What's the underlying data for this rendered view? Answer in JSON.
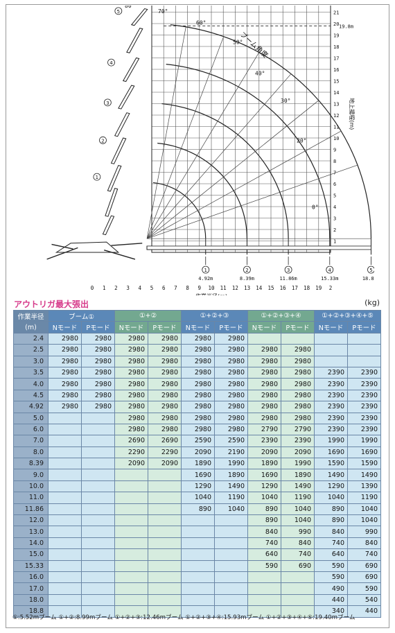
{
  "chart_data": {
    "type": "diagram",
    "y_ticks": [
      "1",
      "2",
      "3",
      "4",
      "5",
      "6",
      "7",
      "8",
      "9",
      "10",
      "11",
      "12",
      "13",
      "14",
      "15",
      "16",
      "17",
      "18",
      "19",
      "20",
      "21",
      "22"
    ],
    "x_ticks": [
      "0",
      "1",
      "2",
      "3",
      "4",
      "5",
      "6",
      "7",
      "8",
      "9",
      "10",
      "11",
      "12",
      "13",
      "14",
      "15",
      "16",
      "17",
      "18",
      "19",
      "2"
    ],
    "ylabel": "地上揚程(m)",
    "xlabel": "作業半径(m)",
    "y_max_label": "19.8m",
    "arc_label": "ブーム角度",
    "boom_angles": [
      "80°",
      "70°",
      "60°",
      "50°",
      "40°",
      "30°",
      "20°",
      "0°"
    ],
    "boom_stages": [
      {
        "index": "①",
        "length": "4.92m"
      },
      {
        "index": "②",
        "length": "8.39m"
      },
      {
        "index": "③",
        "length": "11.86m"
      },
      {
        "index": "④",
        "length": "15.33m"
      },
      {
        "index": "⑤",
        "length": "18.80m"
      }
    ]
  },
  "page_title": "アウトリガ最大張出",
  "unit": "(kg)",
  "table": {
    "corner_top": "作業半径",
    "corner_bottom": "(m)",
    "groups": [
      "ブーム①",
      "①+②",
      "①+②+③",
      "①+②+③+④",
      "①+②+③+④+⑤"
    ],
    "modes": [
      "Nモード",
      "Pモード"
    ],
    "rows": [
      {
        "r": "2.4",
        "v": [
          "2980",
          "2980",
          "2980",
          "2980",
          "2980",
          "2980",
          "",
          "",
          "",
          ""
        ]
      },
      {
        "r": "2.5",
        "v": [
          "2980",
          "2980",
          "2980",
          "2980",
          "2980",
          "2980",
          "2980",
          "2980",
          "",
          ""
        ]
      },
      {
        "r": "3.0",
        "v": [
          "2980",
          "2980",
          "2980",
          "2980",
          "2980",
          "2980",
          "2980",
          "2980",
          "",
          ""
        ]
      },
      {
        "r": "3.5",
        "v": [
          "2980",
          "2980",
          "2980",
          "2980",
          "2980",
          "2980",
          "2980",
          "2980",
          "2390",
          "2390"
        ]
      },
      {
        "r": "4.0",
        "v": [
          "2980",
          "2980",
          "2980",
          "2980",
          "2980",
          "2980",
          "2980",
          "2980",
          "2390",
          "2390"
        ]
      },
      {
        "r": "4.5",
        "v": [
          "2980",
          "2980",
          "2980",
          "2980",
          "2980",
          "2980",
          "2980",
          "2980",
          "2390",
          "2390"
        ]
      },
      {
        "r": "4.92",
        "v": [
          "2980",
          "2980",
          "2980",
          "2980",
          "2980",
          "2980",
          "2980",
          "2980",
          "2390",
          "2390"
        ]
      },
      {
        "r": "5.0",
        "v": [
          "",
          "",
          "2980",
          "2980",
          "2980",
          "2980",
          "2980",
          "2980",
          "2390",
          "2390"
        ]
      },
      {
        "r": "6.0",
        "v": [
          "",
          "",
          "2980",
          "2980",
          "2980",
          "2980",
          "2790",
          "2790",
          "2390",
          "2390"
        ]
      },
      {
        "r": "7.0",
        "v": [
          "",
          "",
          "2690",
          "2690",
          "2590",
          "2590",
          "2390",
          "2390",
          "1990",
          "1990"
        ]
      },
      {
        "r": "8.0",
        "v": [
          "",
          "",
          "2290",
          "2290",
          "2090",
          "2190",
          "2090",
          "2090",
          "1690",
          "1690"
        ]
      },
      {
        "r": "8.39",
        "v": [
          "",
          "",
          "2090",
          "2090",
          "1890",
          "1990",
          "1890",
          "1990",
          "1590",
          "1590"
        ]
      },
      {
        "r": "9.0",
        "v": [
          "",
          "",
          "",
          "",
          "1690",
          "1890",
          "1690",
          "1890",
          "1490",
          "1490"
        ]
      },
      {
        "r": "10.0",
        "v": [
          "",
          "",
          "",
          "",
          "1290",
          "1490",
          "1290",
          "1490",
          "1290",
          "1390"
        ]
      },
      {
        "r": "11.0",
        "v": [
          "",
          "",
          "",
          "",
          "1040",
          "1190",
          "1040",
          "1190",
          "1040",
          "1190"
        ]
      },
      {
        "r": "11.86",
        "v": [
          "",
          "",
          "",
          "",
          "890",
          "1040",
          "890",
          "1040",
          "890",
          "1040"
        ]
      },
      {
        "r": "12.0",
        "v": [
          "",
          "",
          "",
          "",
          "",
          "",
          "890",
          "1040",
          "890",
          "1040"
        ]
      },
      {
        "r": "13.0",
        "v": [
          "",
          "",
          "",
          "",
          "",
          "",
          "840",
          "990",
          "840",
          "990"
        ]
      },
      {
        "r": "14.0",
        "v": [
          "",
          "",
          "",
          "",
          "",
          "",
          "740",
          "840",
          "740",
          "840"
        ]
      },
      {
        "r": "15.0",
        "v": [
          "",
          "",
          "",
          "",
          "",
          "",
          "640",
          "740",
          "640",
          "740"
        ]
      },
      {
        "r": "15.33",
        "v": [
          "",
          "",
          "",
          "",
          "",
          "",
          "590",
          "690",
          "590",
          "690"
        ]
      },
      {
        "r": "16.0",
        "v": [
          "",
          "",
          "",
          "",
          "",
          "",
          "",
          "",
          "590",
          "690"
        ]
      },
      {
        "r": "17.0",
        "v": [
          "",
          "",
          "",
          "",
          "",
          "",
          "",
          "",
          "490",
          "590"
        ]
      },
      {
        "r": "18.0",
        "v": [
          "",
          "",
          "",
          "",
          "",
          "",
          "",
          "",
          "440",
          "540"
        ]
      },
      {
        "r": "18.8",
        "v": [
          "",
          "",
          "",
          "",
          "",
          "",
          "",
          "",
          "340",
          "440"
        ]
      }
    ]
  },
  "footnote": "①:5.52mブーム ①+②:8.99mブーム ①+②+③:12.46mブーム ①+②+③+④:15.93mブーム ①+②+③+④+⑤:19.40mブーム"
}
